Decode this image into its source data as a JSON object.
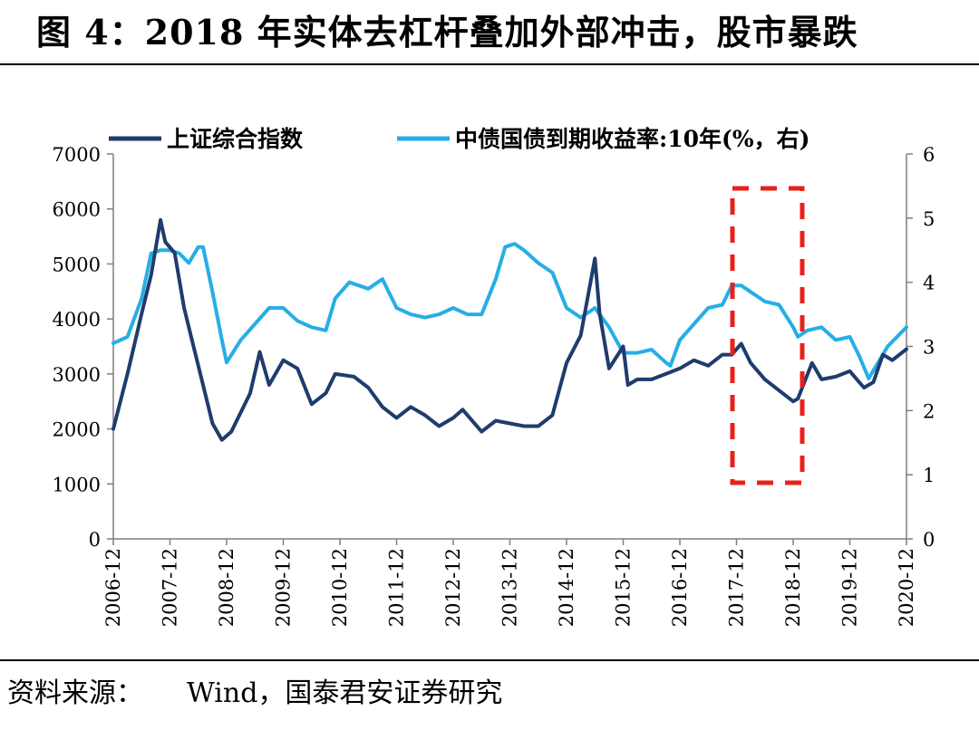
{
  "title": "图 4：2018 年实体去杠杆叠加外部冲击，股市暴跌",
  "source": {
    "label": "资料来源：",
    "text": "Wind，国泰君安证券研究"
  },
  "colors": {
    "series1": "#1f3c6e",
    "series2": "#26aee6",
    "highlight": "#e8211b",
    "axis": "#7f7f7f"
  },
  "chart_data": {
    "type": "line",
    "x_tick_labels": [
      "2006-12",
      "2007-12",
      "2008-12",
      "2009-12",
      "2010-12",
      "2011-12",
      "2012-12",
      "2013-12",
      "2014-12",
      "2015-12",
      "2016-12",
      "2017-12",
      "2018-12",
      "2019-12",
      "2020-12"
    ],
    "y_left": {
      "lim": [
        0,
        7000
      ],
      "ticks": [
        0,
        1000,
        2000,
        3000,
        4000,
        5000,
        6000,
        7000
      ]
    },
    "y_right": {
      "lim": [
        0,
        6
      ],
      "ticks": [
        0,
        1,
        2,
        3,
        4,
        5,
        6
      ]
    },
    "legend_position": "top",
    "grid": false,
    "series": [
      {
        "name": "上证综合指数",
        "axis": "left",
        "x": [
          "2006-12",
          "2007-03",
          "2007-06",
          "2007-08",
          "2007-10",
          "2007-11",
          "2008-01",
          "2008-03",
          "2008-05",
          "2008-07",
          "2008-09",
          "2008-11",
          "2009-01",
          "2009-03",
          "2009-05",
          "2009-07",
          "2009-09",
          "2009-12",
          "2010-03",
          "2010-06",
          "2010-09",
          "2010-11",
          "2011-03",
          "2011-06",
          "2011-09",
          "2011-12",
          "2012-03",
          "2012-06",
          "2012-09",
          "2012-12",
          "2013-02",
          "2013-06",
          "2013-09",
          "2013-12",
          "2014-03",
          "2014-06",
          "2014-09",
          "2014-12",
          "2015-03",
          "2015-06",
          "2015-07",
          "2015-09",
          "2015-12",
          "2016-01",
          "2016-03",
          "2016-06",
          "2016-09",
          "2016-12",
          "2017-03",
          "2017-06",
          "2017-09",
          "2017-11",
          "2018-01",
          "2018-03",
          "2018-06",
          "2018-09",
          "2018-12",
          "2019-01",
          "2019-04",
          "2019-06",
          "2019-09",
          "2019-12",
          "2020-02",
          "2020-03",
          "2020-05",
          "2020-07",
          "2020-09",
          "2020-12"
        ],
        "values": [
          2000,
          3000,
          4100,
          4800,
          5800,
          5400,
          5200,
          4200,
          3500,
          2800,
          2100,
          1800,
          1950,
          2300,
          2650,
          3400,
          2800,
          3250,
          3100,
          2450,
          2650,
          3000,
          2950,
          2750,
          2400,
          2200,
          2400,
          2250,
          2050,
          2200,
          2350,
          1950,
          2150,
          2100,
          2050,
          2050,
          2250,
          3200,
          3700,
          5100,
          4100,
          3100,
          3500,
          2800,
          2900,
          2900,
          3000,
          3100,
          3250,
          3150,
          3350,
          3350,
          3550,
          3200,
          2900,
          2700,
          2500,
          2550,
          3200,
          2900,
          2950,
          3050,
          2850,
          2750,
          2850,
          3350,
          3250,
          3450
        ]
      },
      {
        "name": "中债国债到期收益率:10年(%，右)",
        "axis": "right",
        "x": [
          "2006-12",
          "2007-03",
          "2007-06",
          "2007-08",
          "2007-10",
          "2007-12",
          "2008-02",
          "2008-04",
          "2008-06",
          "2008-07",
          "2008-09",
          "2008-11",
          "2008-12",
          "2009-03",
          "2009-06",
          "2009-09",
          "2009-12",
          "2010-03",
          "2010-06",
          "2010-09",
          "2010-11",
          "2011-02",
          "2011-06",
          "2011-09",
          "2011-12",
          "2012-03",
          "2012-06",
          "2012-09",
          "2012-12",
          "2013-03",
          "2013-06",
          "2013-09",
          "2013-11",
          "2014-01",
          "2014-03",
          "2014-06",
          "2014-09",
          "2014-12",
          "2015-03",
          "2015-06",
          "2015-09",
          "2015-12",
          "2016-03",
          "2016-06",
          "2016-09",
          "2016-10",
          "2016-12",
          "2017-03",
          "2017-06",
          "2017-09",
          "2017-11",
          "2018-01",
          "2018-03",
          "2018-06",
          "2018-09",
          "2018-12",
          "2019-01",
          "2019-03",
          "2019-06",
          "2019-09",
          "2019-12",
          "2020-02",
          "2020-04",
          "2020-06",
          "2020-08",
          "2020-10",
          "2020-12"
        ],
        "values": [
          3.05,
          3.15,
          3.75,
          4.45,
          4.5,
          4.5,
          4.45,
          4.3,
          4.55,
          4.55,
          3.85,
          3.1,
          2.75,
          3.1,
          3.35,
          3.6,
          3.6,
          3.4,
          3.3,
          3.25,
          3.75,
          4.0,
          3.9,
          4.05,
          3.6,
          3.5,
          3.45,
          3.5,
          3.6,
          3.5,
          3.5,
          4.05,
          4.55,
          4.6,
          4.5,
          4.3,
          4.15,
          3.6,
          3.45,
          3.6,
          3.3,
          2.9,
          2.9,
          2.95,
          2.75,
          2.7,
          3.1,
          3.35,
          3.6,
          3.65,
          3.95,
          3.95,
          3.85,
          3.7,
          3.65,
          3.3,
          3.15,
          3.25,
          3.3,
          3.1,
          3.15,
          2.85,
          2.5,
          2.75,
          3.0,
          3.15,
          3.3
        ]
      }
    ]
  }
}
